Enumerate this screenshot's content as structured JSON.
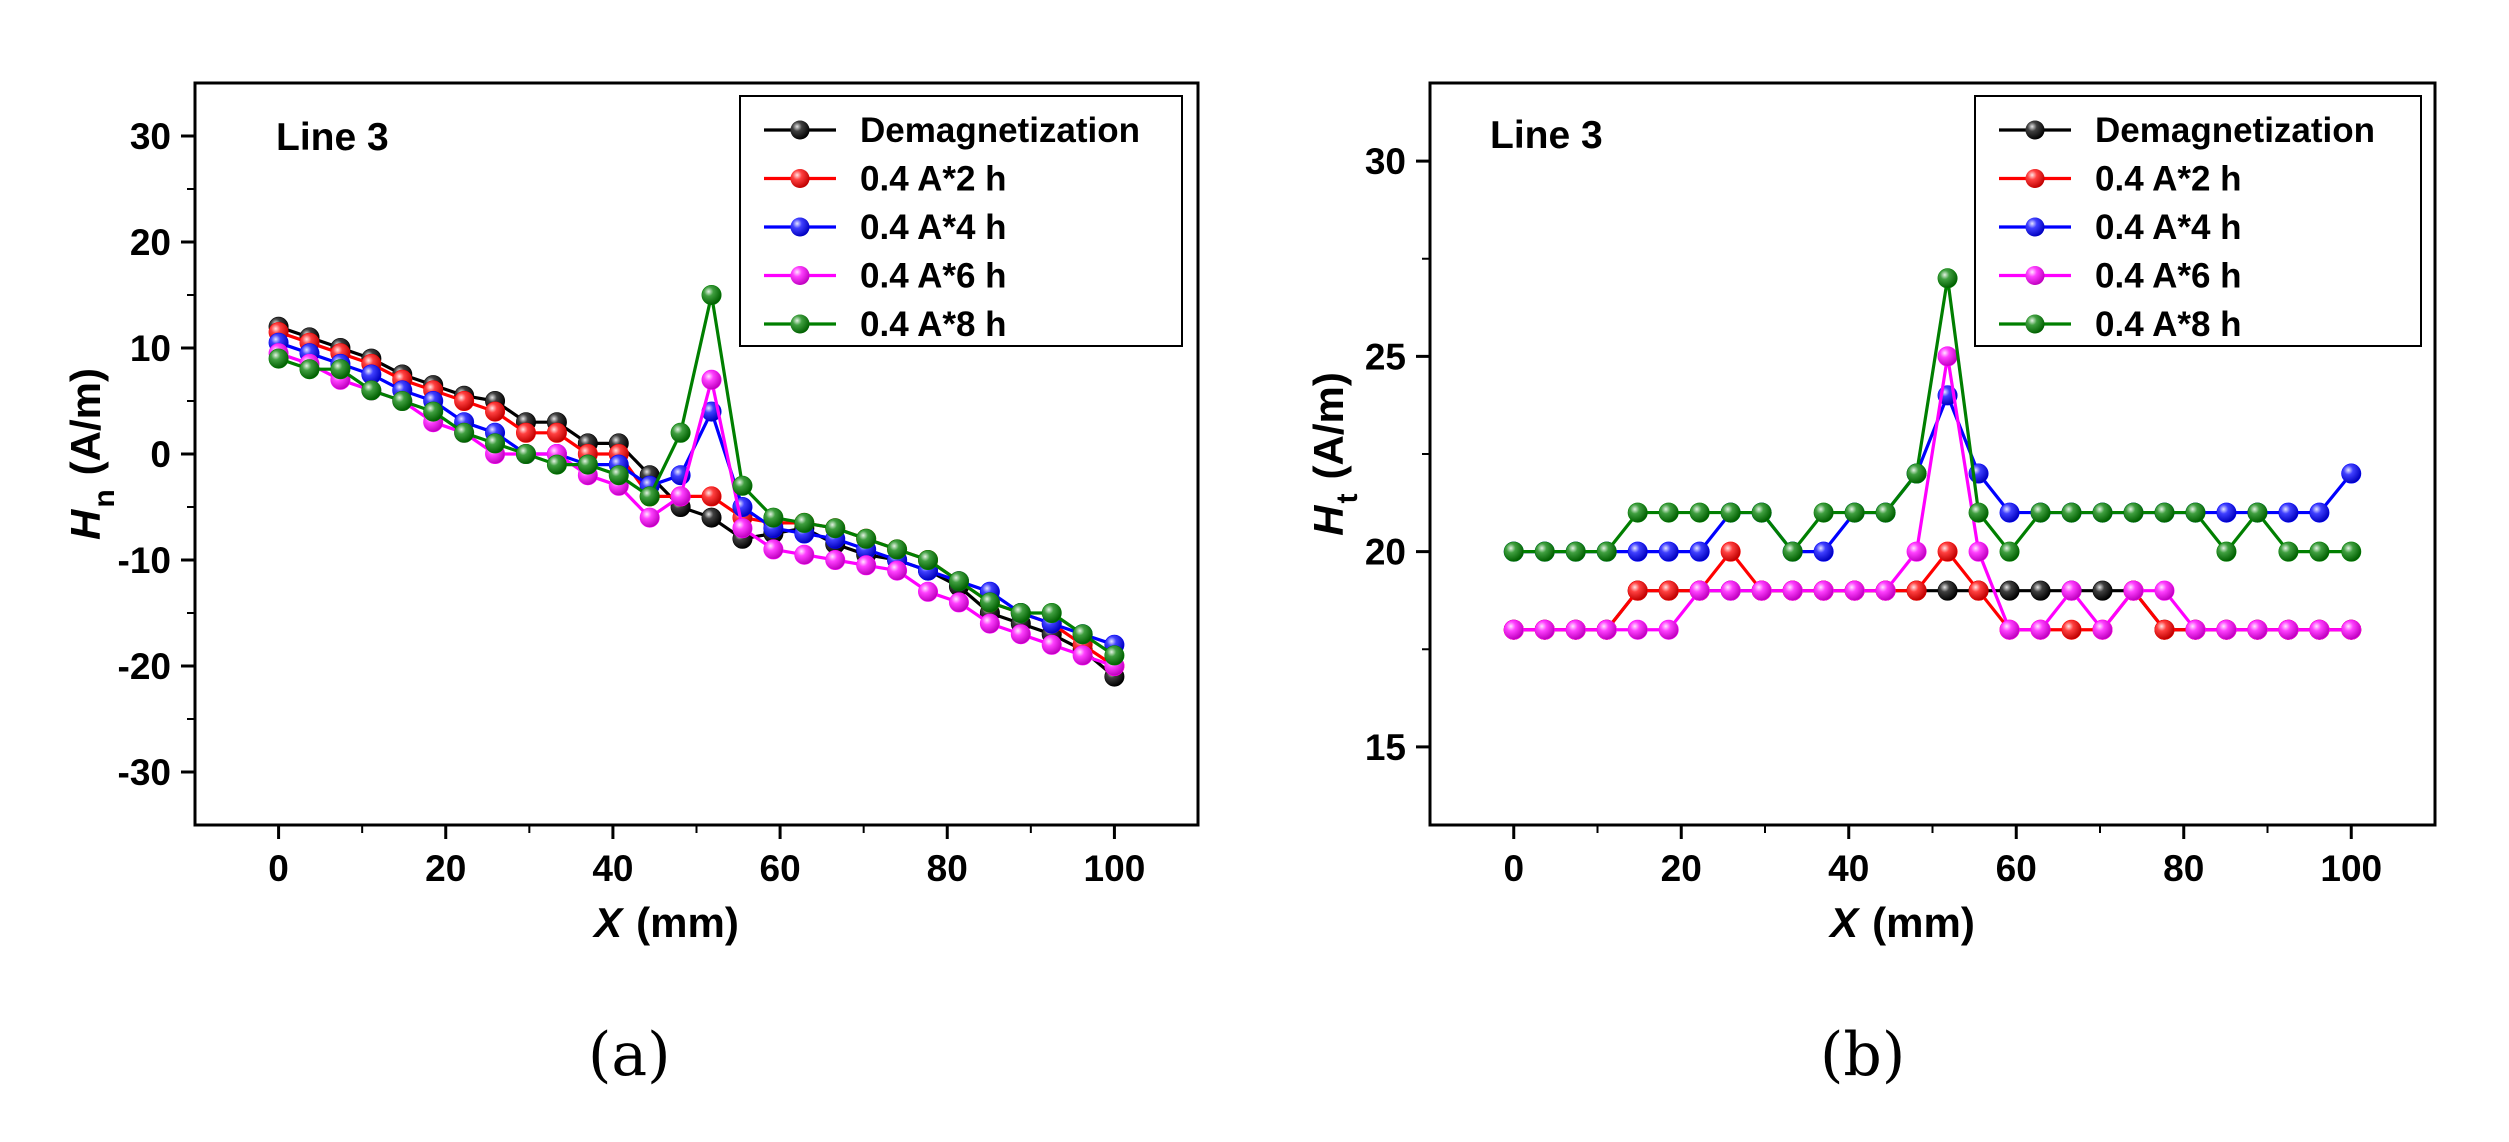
{
  "chart_data": [
    {
      "type": "line",
      "panel_label": "(a)",
      "annotation": "Line 3",
      "xlabel": "X",
      "xunit": "(mm)",
      "ylabel": "H",
      "ylabel_sub": "n",
      "yunit": "(A/m)",
      "xlim": [
        -10,
        110
      ],
      "ylim": [
        -35,
        35
      ],
      "xticks": [
        0,
        20,
        40,
        60,
        80,
        100
      ],
      "yticks": [
        -30,
        -20,
        -10,
        0,
        10,
        20,
        30
      ],
      "legend_position": "top-right",
      "x": [
        0,
        3.7,
        7.4,
        11.1,
        14.8,
        18.5,
        22.2,
        25.9,
        29.6,
        33.3,
        37,
        40.7,
        44.4,
        48.1,
        51.8,
        55.5,
        59.2,
        62.9,
        66.6,
        70.3,
        74,
        77.7,
        81.4,
        85.1,
        88.8,
        92.5,
        96.2,
        100
      ],
      "series": [
        {
          "name": "Demagnetization",
          "color": "#000000",
          "values": [
            12,
            11,
            10,
            9,
            7.5,
            6.5,
            5.5,
            5,
            3,
            3,
            1,
            1,
            -2,
            -5,
            -6,
            -8,
            -7.5,
            -7,
            -8.5,
            -9.5,
            -10,
            -11,
            -12.5,
            -15,
            -16,
            -17,
            -18.5,
            -21
          ]
        },
        {
          "name": "0.4 A*2 h",
          "color": "#ff0000",
          "values": [
            11.5,
            10.5,
            9.5,
            8.5,
            7,
            6,
            5,
            4,
            2,
            2,
            0,
            0,
            -4,
            -4,
            -4,
            -6,
            -6.5,
            -6.5,
            -7,
            -8,
            -9,
            -10,
            -12,
            -14,
            -15,
            -16,
            -18,
            -20
          ]
        },
        {
          "name": "0.4 A*4 h",
          "color": "#0000ff",
          "values": [
            10.5,
            9.5,
            8.5,
            7.5,
            6,
            5,
            3,
            2,
            0,
            0,
            -1,
            -1,
            -3,
            -2,
            4,
            -5,
            -7,
            -7.5,
            -8,
            -9,
            -10,
            -11,
            -12,
            -13,
            -15,
            -16,
            -17,
            -18
          ]
        },
        {
          "name": "0.4 A*6 h",
          "color": "#ff00ff",
          "values": [
            9.5,
            8.5,
            7,
            6,
            5,
            3,
            2,
            0,
            0,
            0,
            -2,
            -3,
            -6,
            -4,
            7,
            -7,
            -9,
            -9.5,
            -10,
            -10.5,
            -11,
            -13,
            -14,
            -16,
            -17,
            -18,
            -19,
            -20
          ]
        },
        {
          "name": "0.4 A*8 h",
          "color": "#007f00",
          "values": [
            9,
            8,
            8,
            6,
            5,
            4,
            2,
            1,
            0,
            -1,
            -1,
            -2,
            -4,
            2,
            15,
            -3,
            -6,
            -6.5,
            -7,
            -8,
            -9,
            -10,
            -12,
            -14,
            -15,
            -15,
            -17,
            -19
          ]
        }
      ]
    },
    {
      "type": "line",
      "panel_label": "(b)",
      "annotation": "Line 3",
      "xlabel": "X",
      "xunit": "(mm)",
      "ylabel": "H",
      "ylabel_sub": "t",
      "yunit": "(A/m)",
      "xlim": [
        -10,
        110
      ],
      "ylim": [
        13,
        32
      ],
      "xticks": [
        0,
        20,
        40,
        60,
        80,
        100
      ],
      "yticks": [
        15,
        20,
        25,
        30
      ],
      "legend_position": "top-right",
      "x": [
        0,
        3.7,
        7.4,
        11.1,
        14.8,
        18.5,
        22.2,
        25.9,
        29.6,
        33.3,
        37,
        40.7,
        44.4,
        48.1,
        51.8,
        55.5,
        59.2,
        62.9,
        66.6,
        70.3,
        74,
        77.7,
        81.4,
        85.1,
        88.8,
        92.5,
        96.2,
        100
      ],
      "series": [
        {
          "name": "Demagnetization",
          "color": "#000000",
          "values": [
            18,
            18,
            18,
            18,
            19,
            19,
            19,
            19,
            19,
            19,
            19,
            19,
            19,
            19,
            19,
            19,
            19,
            19,
            19,
            19,
            19,
            18,
            18,
            18,
            18,
            18,
            18,
            18
          ]
        },
        {
          "name": "0.4 A*2 h",
          "color": "#ff0000",
          "values": [
            18,
            18,
            18,
            18,
            19,
            19,
            19,
            20,
            19,
            19,
            19,
            19,
            19,
            19,
            20,
            19,
            18,
            18,
            18,
            18,
            19,
            18,
            18,
            18,
            18,
            18,
            18,
            18
          ]
        },
        {
          "name": "0.4 A*4 h",
          "color": "#0000ff",
          "values": [
            20,
            20,
            20,
            20,
            20,
            20,
            20,
            21,
            21,
            20,
            20,
            21,
            21,
            22,
            24,
            22,
            21,
            21,
            21,
            21,
            21,
            21,
            21,
            21,
            21,
            21,
            21,
            22
          ]
        },
        {
          "name": "0.4 A*6 h",
          "color": "#ff00ff",
          "values": [
            18,
            18,
            18,
            18,
            18,
            18,
            19,
            19,
            19,
            19,
            19,
            19,
            19,
            20,
            25,
            20,
            18,
            18,
            19,
            18,
            19,
            19,
            18,
            18,
            18,
            18,
            18,
            18
          ]
        },
        {
          "name": "0.4 A*8 h",
          "color": "#007f00",
          "values": [
            20,
            20,
            20,
            20,
            21,
            21,
            21,
            21,
            21,
            20,
            21,
            21,
            21,
            22,
            27,
            21,
            20,
            21,
            21,
            21,
            21,
            21,
            21,
            20,
            21,
            20,
            20,
            20
          ]
        }
      ]
    }
  ]
}
